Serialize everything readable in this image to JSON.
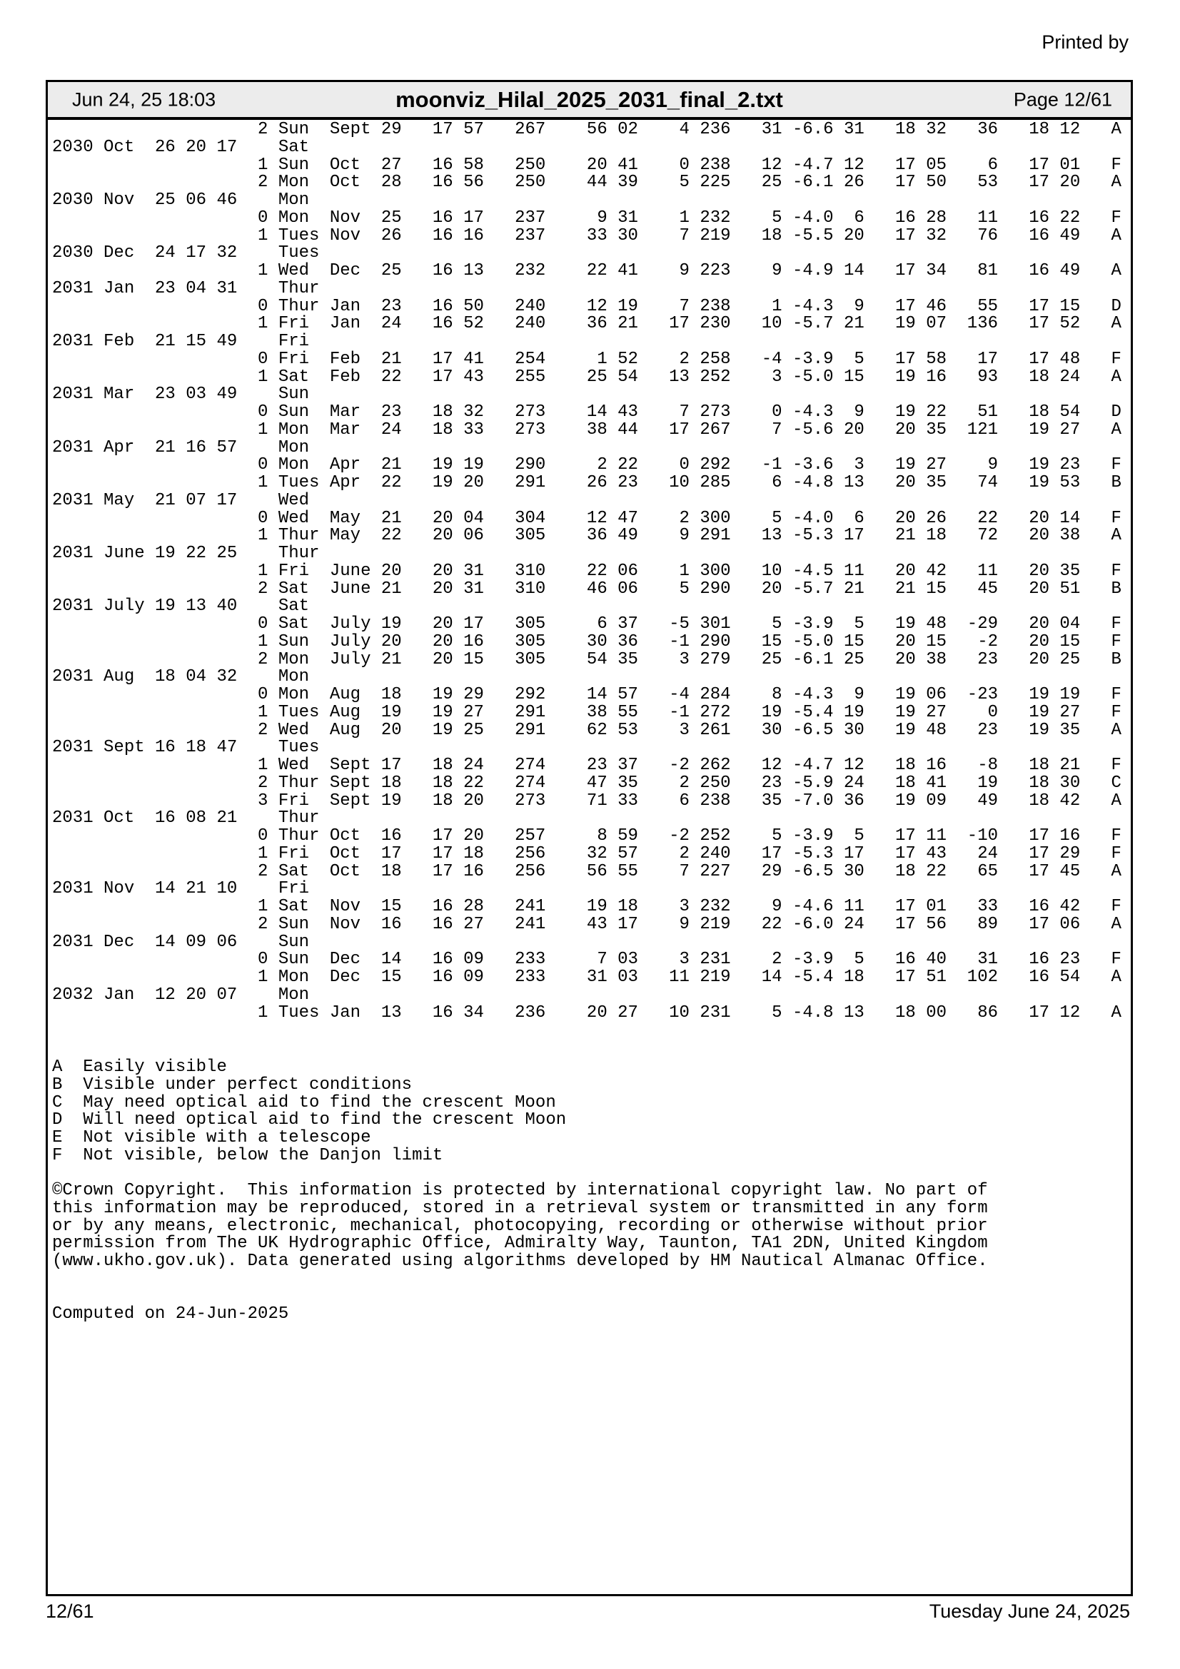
{
  "printed_by": "Printed by",
  "header": {
    "datetime": "Jun 24, 25 18:03",
    "filename": "moonviz_Hilal_2025_2031_final_2.txt",
    "page": "Page 12/61"
  },
  "table_lines": [
    "                    2 Sun  Sept 29   17 57   267    56 02    4 236   31 -6.6 31   18 32   36   18 12   A",
    "2030 Oct  26 20 17    Sat",
    "                    1 Sun  Oct  27   16 58   250    20 41    0 238   12 -4.7 12   17 05    6   17 01   F",
    "                    2 Mon  Oct  28   16 56   250    44 39    5 225   25 -6.1 26   17 50   53   17 20   A",
    "2030 Nov  25 06 46    Mon",
    "                    0 Mon  Nov  25   16 17   237     9 31    1 232    5 -4.0  6   16 28   11   16 22   F",
    "                    1 Tues Nov  26   16 16   237    33 30    7 219   18 -5.5 20   17 32   76   16 49   A",
    "2030 Dec  24 17 32    Tues",
    "                    1 Wed  Dec  25   16 13   232    22 41    9 223    9 -4.9 14   17 34   81   16 49   A",
    "2031 Jan  23 04 31    Thur",
    "                    0 Thur Jan  23   16 50   240    12 19    7 238    1 -4.3  9   17 46   55   17 15   D",
    "                    1 Fri  Jan  24   16 52   240    36 21   17 230   10 -5.7 21   19 07  136   17 52   A",
    "2031 Feb  21 15 49    Fri",
    "                    0 Fri  Feb  21   17 41   254     1 52    2 258   -4 -3.9  5   17 58   17   17 48   F",
    "                    1 Sat  Feb  22   17 43   255    25 54   13 252    3 -5.0 15   19 16   93   18 24   A",
    "2031 Mar  23 03 49    Sun",
    "                    0 Sun  Mar  23   18 32   273    14 43    7 273    0 -4.3  9   19 22   51   18 54   D",
    "                    1 Mon  Mar  24   18 33   273    38 44   17 267    7 -5.6 20   20 35  121   19 27   A",
    "2031 Apr  21 16 57    Mon",
    "                    0 Mon  Apr  21   19 19   290     2 22    0 292   -1 -3.6  3   19 27    9   19 23   F",
    "                    1 Tues Apr  22   19 20   291    26 23   10 285    6 -4.8 13   20 35   74   19 53   B",
    "2031 May  21 07 17    Wed",
    "                    0 Wed  May  21   20 04   304    12 47    2 300    5 -4.0  6   20 26   22   20 14   F",
    "                    1 Thur May  22   20 06   305    36 49    9 291   13 -5.3 17   21 18   72   20 38   A",
    "2031 June 19 22 25    Thur",
    "                    1 Fri  June 20   20 31   310    22 06    1 300   10 -4.5 11   20 42   11   20 35   F",
    "                    2 Sat  June 21   20 31   310    46 06    5 290   20 -5.7 21   21 15   45   20 51   B",
    "2031 July 19 13 40    Sat",
    "                    0 Sat  July 19   20 17   305     6 37   -5 301    5 -3.9  5   19 48  -29   20 04   F",
    "                    1 Sun  July 20   20 16   305    30 36   -1 290   15 -5.0 15   20 15   -2   20 15   F",
    "                    2 Mon  July 21   20 15   305    54 35    3 279   25 -6.1 25   20 38   23   20 25   B",
    "2031 Aug  18 04 32    Mon",
    "                    0 Mon  Aug  18   19 29   292    14 57   -4 284    8 -4.3  9   19 06  -23   19 19   F",
    "                    1 Tues Aug  19   19 27   291    38 55   -1 272   19 -5.4 19   19 27    0   19 27   F",
    "                    2 Wed  Aug  20   19 25   291    62 53    3 261   30 -6.5 30   19 48   23   19 35   A",
    "2031 Sept 16 18 47    Tues",
    "                    1 Wed  Sept 17   18 24   274    23 37   -2 262   12 -4.7 12   18 16   -8   18 21   F",
    "                    2 Thur Sept 18   18 22   274    47 35    2 250   23 -5.9 24   18 41   19   18 30   C",
    "                    3 Fri  Sept 19   18 20   273    71 33    6 238   35 -7.0 36   19 09   49   18 42   A",
    "2031 Oct  16 08 21    Thur",
    "                    0 Thur Oct  16   17 20   257     8 59   -2 252    5 -3.9  5   17 11  -10   17 16   F",
    "                    1 Fri  Oct  17   17 18   256    32 57    2 240   17 -5.3 17   17 43   24   17 29   F",
    "                    2 Sat  Oct  18   17 16   256    56 55    7 227   29 -6.5 30   18 22   65   17 45   A",
    "2031 Nov  14 21 10    Fri",
    "                    1 Sat  Nov  15   16 28   241    19 18    3 232    9 -4.6 11   17 01   33   16 42   F",
    "                    2 Sun  Nov  16   16 27   241    43 17    9 219   22 -6.0 24   17 56   89   17 06   A",
    "2031 Dec  14 09 06    Sun",
    "                    0 Sun  Dec  14   16 09   233     7 03    3 231    2 -3.9  5   16 40   31   16 23   F",
    "                    1 Mon  Dec  15   16 09   233    31 03   11 219   14 -5.4 18   17 51  102   16 54   A",
    "2032 Jan  12 20 07    Mon",
    "                    1 Tues Jan  13   16 34   236    20 27   10 231    5 -4.8 13   18 00   86   17 12   A"
  ],
  "legend_lines": [
    "A  Easily visible",
    "B  Visible under perfect conditions",
    "C  May need optical aid to find the crescent Moon",
    "D  Will need optical aid to find the crescent Moon",
    "E  Not visible with a telescope",
    "F  Not visible, below the Danjon limit"
  ],
  "copyright_lines": [
    "©Crown Copyright.  This information is protected by international copyright law. No part of",
    "this information may be reproduced, stored in a retrieval system or transmitted in any form",
    "or by any means, electronic, mechanical, photocopying, recording or otherwise without prior",
    "permission from The UK Hydrographic Office, Admiralty Way, Taunton, TA1 2DN, United Kingdom",
    "(www.ukho.gov.uk). Data generated using algorithms developed by HM Nautical Almanac Office."
  ],
  "computed": "Computed on 24-Jun-2025",
  "footer": {
    "page": "12/61",
    "date": "Tuesday June 24, 2025"
  }
}
